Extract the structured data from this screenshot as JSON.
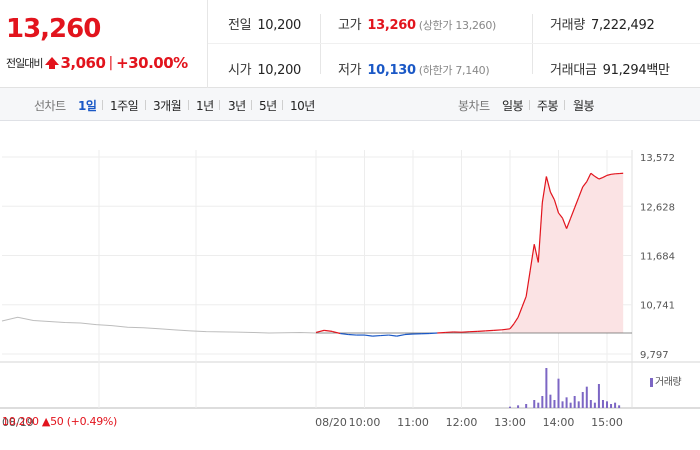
{
  "quote": {
    "price": "13,260",
    "change_label": "전일대비",
    "change_value": "3,060",
    "change_sep": "|",
    "change_pct": "+30.00%"
  },
  "stats": {
    "prev_label": "전일",
    "prev_value": "10,200",
    "high_label": "고가",
    "high_value": "13,260",
    "upper_limit": "(상한가 13,260)",
    "volume_label": "거래량",
    "volume_value": "7,222,492",
    "open_label": "시가",
    "open_value": "10,200",
    "low_label": "저가",
    "low_value": "10,130",
    "lower_limit": "(하한가 7,140)",
    "amount_label": "거래대금",
    "amount_value": "91,294",
    "amount_unit": "백만"
  },
  "tabs": {
    "line_label": "선차트",
    "line_tabs": [
      "1일",
      "1주일",
      "3개월",
      "1년",
      "3년",
      "5년",
      "10년"
    ],
    "active_line_tab": "1일",
    "candle_label": "봉차트",
    "candle_tabs": [
      "일봉",
      "주봉",
      "월봉"
    ]
  },
  "chart_data": {
    "type": "line",
    "y_ticks": [
      "13,572",
      "12,628",
      "11,684",
      "10,741",
      "9,797"
    ],
    "y_tick_values": [
      13572,
      12628,
      11684,
      10741,
      9797
    ],
    "ylim": [
      9797,
      13572
    ],
    "reference_price": 10200,
    "x_ticks": [
      "08/19",
      "08/20",
      "10:00",
      "11:00",
      "12:00",
      "13:00",
      "14:00",
      "15:00"
    ],
    "volume_legend": "거래량",
    "prev_day": {
      "x": [
        0,
        5,
        10,
        15,
        20,
        25,
        30,
        35,
        40,
        45,
        50,
        55,
        60,
        65,
        70,
        75,
        80,
        85,
        90,
        95,
        100
      ],
      "values": [
        10430,
        10500,
        10440,
        10420,
        10400,
        10390,
        10360,
        10340,
        10310,
        10300,
        10280,
        10260,
        10240,
        10225,
        10220,
        10215,
        10210,
        10200,
        10205,
        10210,
        10200
      ]
    },
    "today": {
      "times": [
        "09:00",
        "09:10",
        "09:20",
        "09:30",
        "09:40",
        "09:50",
        "10:00",
        "10:10",
        "10:20",
        "10:30",
        "10:40",
        "10:50",
        "11:00",
        "11:10",
        "11:20",
        "11:30",
        "11:40",
        "11:50",
        "12:00",
        "12:10",
        "12:20",
        "12:30",
        "12:40",
        "12:50",
        "13:00",
        "13:05",
        "13:10",
        "13:15",
        "13:20",
        "13:25",
        "13:30",
        "13:35",
        "13:40",
        "13:45",
        "13:50",
        "13:55",
        "14:00",
        "14:05",
        "14:10",
        "14:15",
        "14:20",
        "14:25",
        "14:30",
        "14:35",
        "14:40",
        "14:45",
        "14:50",
        "14:55",
        "15:00",
        "15:05",
        "15:10",
        "15:15",
        "15:20"
      ],
      "values": [
        10210,
        10250,
        10230,
        10190,
        10170,
        10160,
        10160,
        10140,
        10150,
        10160,
        10140,
        10170,
        10180,
        10185,
        10190,
        10200,
        10210,
        10220,
        10215,
        10225,
        10230,
        10240,
        10250,
        10260,
        10280,
        10380,
        10500,
        10700,
        10900,
        11400,
        11900,
        11550,
        12700,
        13200,
        12900,
        12750,
        12500,
        12400,
        12200,
        12400,
        12600,
        12800,
        13000,
        13100,
        13260,
        13200,
        13150,
        13180,
        13220,
        13240,
        13250,
        13255,
        13260
      ]
    },
    "volume": {
      "times": [
        "13:00",
        "13:10",
        "13:20",
        "13:30",
        "13:35",
        "13:40",
        "13:45",
        "13:50",
        "13:55",
        "14:00",
        "14:05",
        "14:10",
        "14:15",
        "14:20",
        "14:25",
        "14:30",
        "14:35",
        "14:40",
        "14:45",
        "14:50",
        "14:55",
        "15:00",
        "15:05",
        "15:10",
        "15:15"
      ],
      "values": [
        1,
        2,
        3,
        6,
        4,
        9,
        30,
        10,
        6,
        22,
        5,
        8,
        4,
        9,
        5,
        12,
        16,
        6,
        4,
        18,
        6,
        5,
        3,
        4,
        2
      ]
    }
  },
  "bottom": {
    "date": "08/19",
    "price": "10,200",
    "arrow": "▲",
    "diff": "50",
    "pct": "(+0.49%)"
  },
  "colors": {
    "up": "#e2141d",
    "down": "#1a58c6",
    "prev_line": "#bdbdbd",
    "volume": "#7c66c4",
    "fill": "#fbe3e4"
  }
}
